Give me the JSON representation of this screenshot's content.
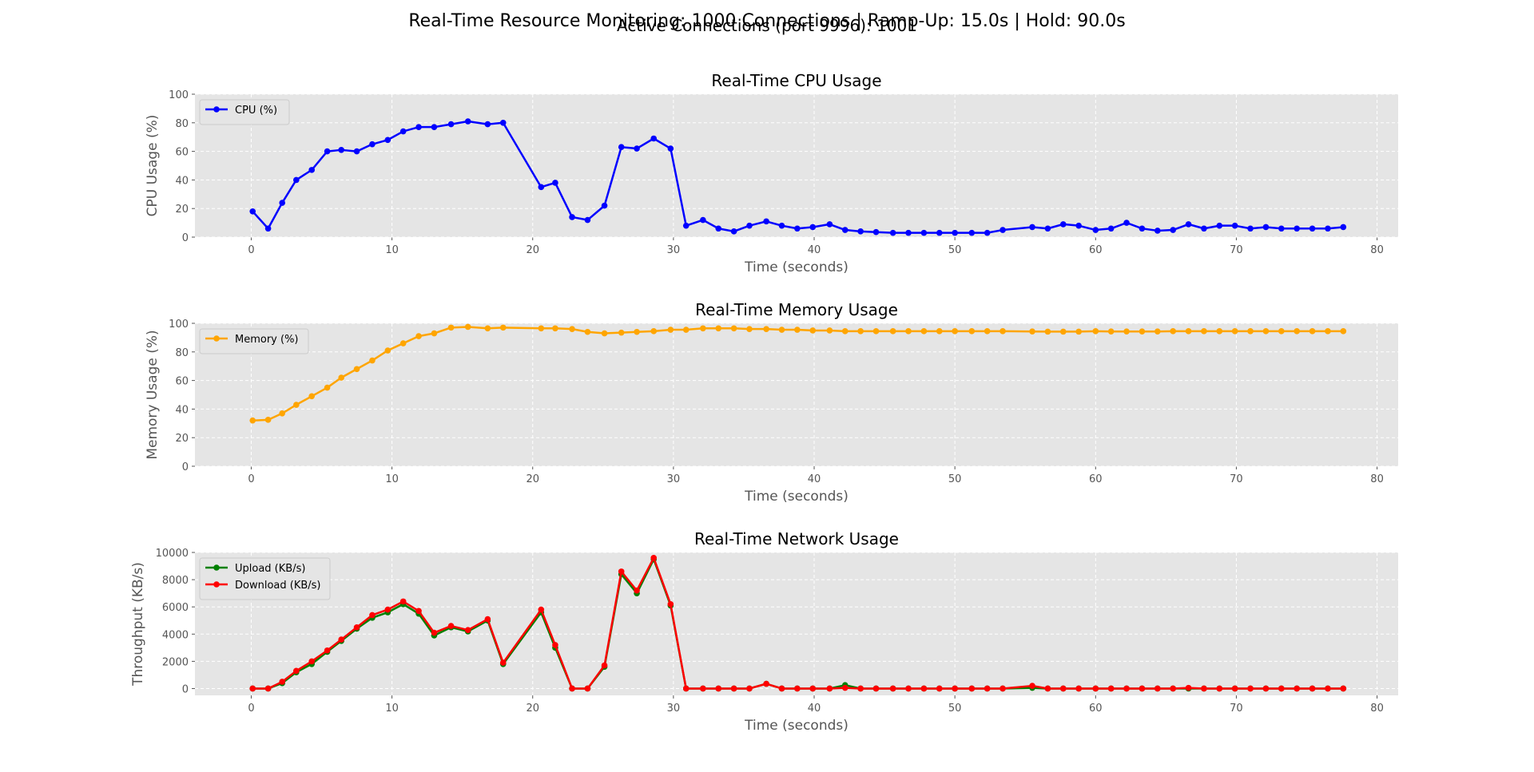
{
  "figure": {
    "title": "Real-Time Resource Monitoring: 1000 Connections | Ramp-Up: 15.0s | Hold: 90.0s",
    "subtitle": "Active Connections (port 9996): 1001"
  },
  "colors": {
    "panel_bg": "#e5e5e5",
    "grid": "#ffffff",
    "cpu": "#0000ff",
    "memory": "#ffa500",
    "upload": "#008000",
    "download": "#ff0000"
  },
  "chart_data": [
    {
      "type": "line",
      "title": "Real-Time CPU Usage",
      "xlabel": "Time (seconds)",
      "ylabel": "CPU Usage (%)",
      "xlim": [
        -4,
        81.5
      ],
      "ylim": [
        0,
        100
      ],
      "xticks": [
        0,
        10,
        20,
        30,
        40,
        50,
        60,
        70,
        80
      ],
      "yticks": [
        0,
        20,
        40,
        60,
        80,
        100
      ],
      "grid": true,
      "legend_position": "top-left",
      "series": [
        {
          "name": "CPU (%)",
          "color": "#0000ff",
          "x": [
            0.1,
            1.2,
            2.2,
            3.2,
            4.3,
            5.4,
            6.4,
            7.5,
            8.6,
            9.7,
            10.8,
            11.9,
            13.0,
            14.2,
            15.4,
            16.8,
            17.9,
            20.6,
            21.6,
            22.8,
            23.9,
            25.1,
            26.3,
            27.4,
            28.6,
            29.8,
            30.9,
            32.1,
            33.2,
            34.3,
            35.4,
            36.6,
            37.7,
            38.8,
            39.9,
            41.1,
            42.2,
            43.3,
            44.4,
            45.6,
            46.7,
            47.8,
            48.9,
            50.0,
            51.2,
            52.3,
            53.4,
            55.5,
            56.6,
            57.7,
            58.8,
            60.0,
            61.1,
            62.2,
            63.3,
            64.4,
            65.5,
            66.6,
            67.7,
            68.8,
            69.9,
            71.0,
            72.1,
            73.2,
            74.3,
            75.4,
            76.5,
            77.6
          ],
          "y": [
            18,
            6,
            24,
            40,
            47,
            60,
            61,
            60,
            65,
            68,
            74,
            77,
            77,
            79,
            81,
            79,
            80,
            35,
            38,
            14,
            12,
            22,
            63,
            62,
            69,
            62,
            8,
            12,
            6,
            4,
            8,
            11,
            8,
            6,
            7,
            9,
            5,
            4,
            3.5,
            3,
            3,
            3,
            3,
            3,
            3,
            3,
            5,
            7,
            6,
            9,
            8,
            5,
            6,
            10,
            6,
            4.5,
            5,
            9,
            6,
            8,
            8,
            6,
            7,
            6,
            6,
            6,
            6,
            7
          ]
        }
      ]
    },
    {
      "type": "line",
      "title": "Real-Time Memory Usage",
      "xlabel": "Time (seconds)",
      "ylabel": "Memory Usage (%)",
      "xlim": [
        -4,
        81.5
      ],
      "ylim": [
        0,
        100
      ],
      "xticks": [
        0,
        10,
        20,
        30,
        40,
        50,
        60,
        70,
        80
      ],
      "yticks": [
        0,
        20,
        40,
        60,
        80,
        100
      ],
      "grid": true,
      "legend_position": "top-left",
      "series": [
        {
          "name": "Memory (%)",
          "color": "#ffa500",
          "x": [
            0.1,
            1.2,
            2.2,
            3.2,
            4.3,
            5.4,
            6.4,
            7.5,
            8.6,
            9.7,
            10.8,
            11.9,
            13.0,
            14.2,
            15.4,
            16.8,
            17.9,
            20.6,
            21.6,
            22.8,
            23.9,
            25.1,
            26.3,
            27.4,
            28.6,
            29.8,
            30.9,
            32.1,
            33.2,
            34.3,
            35.4,
            36.6,
            37.7,
            38.8,
            39.9,
            41.1,
            42.2,
            43.3,
            44.4,
            45.6,
            46.7,
            47.8,
            48.9,
            50.0,
            51.2,
            52.3,
            53.4,
            55.5,
            56.6,
            57.7,
            58.8,
            60.0,
            61.1,
            62.2,
            63.3,
            64.4,
            65.5,
            66.6,
            67.7,
            68.8,
            69.9,
            71.0,
            72.1,
            73.2,
            74.3,
            75.4,
            76.5,
            77.6
          ],
          "y": [
            32,
            32.5,
            37,
            43,
            49,
            55,
            62,
            68,
            74,
            81,
            86,
            91,
            93,
            97,
            97.5,
            96.5,
            97,
            96.5,
            96.5,
            96,
            94,
            93,
            93.5,
            94,
            94.5,
            95.5,
            95.5,
            96.5,
            96.5,
            96.5,
            96,
            96,
            95.5,
            95.5,
            95,
            95,
            94.5,
            94.5,
            94.5,
            94.5,
            94.5,
            94.5,
            94.5,
            94.5,
            94.5,
            94.5,
            94.5,
            94.3,
            94.2,
            94.2,
            94.2,
            94.5,
            94.3,
            94.3,
            94.3,
            94.3,
            94.5,
            94.5,
            94.5,
            94.5,
            94.5,
            94.5,
            94.5,
            94.5,
            94.5,
            94.5,
            94.5,
            94.5
          ]
        }
      ]
    },
    {
      "type": "line",
      "title": "Real-Time Network Usage",
      "xlabel": "Time (seconds)",
      "ylabel": "Throughput (KB/s)",
      "xlim": [
        -4,
        81.5
      ],
      "ylim": [
        -500,
        10000
      ],
      "xticks": [
        0,
        10,
        20,
        30,
        40,
        50,
        60,
        70,
        80
      ],
      "yticks": [
        0,
        2000,
        4000,
        6000,
        8000,
        10000
      ],
      "grid": true,
      "legend_position": "top-left",
      "series": [
        {
          "name": "Upload (KB/s)",
          "color": "#008000",
          "x": [
            0.1,
            1.2,
            2.2,
            3.2,
            4.3,
            5.4,
            6.4,
            7.5,
            8.6,
            9.7,
            10.8,
            11.9,
            13.0,
            14.2,
            15.4,
            16.8,
            17.9,
            20.6,
            21.6,
            22.8,
            23.9,
            25.1,
            26.3,
            27.4,
            28.6,
            29.8,
            30.9,
            32.1,
            33.2,
            34.3,
            35.4,
            36.6,
            37.7,
            38.8,
            39.9,
            41.1,
            42.2,
            43.3,
            44.4,
            45.6,
            46.7,
            47.8,
            48.9,
            50.0,
            51.2,
            52.3,
            53.4,
            55.5,
            56.6,
            57.7,
            58.8,
            60.0,
            61.1,
            62.2,
            63.3,
            64.4,
            65.5,
            66.6,
            67.7,
            68.8,
            69.9,
            71.0,
            72.1,
            73.2,
            74.3,
            75.4,
            76.5,
            77.6
          ],
          "y": [
            0,
            0,
            400,
            1200,
            1800,
            2700,
            3500,
            4400,
            5200,
            5600,
            6200,
            5500,
            3900,
            4500,
            4200,
            5000,
            1800,
            5600,
            3000,
            0,
            0,
            1600,
            8400,
            7000,
            9500,
            6100,
            0,
            0,
            0,
            0,
            0,
            350,
            0,
            0,
            0,
            0,
            250,
            0,
            0,
            0,
            0,
            0,
            0,
            0,
            0,
            0,
            0,
            50,
            0,
            0,
            0,
            0,
            0,
            0,
            0,
            0,
            0,
            0,
            0,
            0,
            0,
            0,
            0,
            0,
            0,
            0,
            0,
            0
          ]
        },
        {
          "name": "Download (KB/s)",
          "color": "#ff0000",
          "x": [
            0.1,
            1.2,
            2.2,
            3.2,
            4.3,
            5.4,
            6.4,
            7.5,
            8.6,
            9.7,
            10.8,
            11.9,
            13.0,
            14.2,
            15.4,
            16.8,
            17.9,
            20.6,
            21.6,
            22.8,
            23.9,
            25.1,
            26.3,
            27.4,
            28.6,
            29.8,
            30.9,
            32.1,
            33.2,
            34.3,
            35.4,
            36.6,
            37.7,
            38.8,
            39.9,
            41.1,
            42.2,
            43.3,
            44.4,
            45.6,
            46.7,
            47.8,
            48.9,
            50.0,
            51.2,
            52.3,
            53.4,
            55.5,
            56.6,
            57.7,
            58.8,
            60.0,
            61.1,
            62.2,
            63.3,
            64.4,
            65.5,
            66.6,
            67.7,
            68.8,
            69.9,
            71.0,
            72.1,
            73.2,
            74.3,
            75.4,
            76.5,
            77.6
          ],
          "y": [
            0,
            0,
            500,
            1300,
            2000,
            2800,
            3600,
            4500,
            5400,
            5800,
            6400,
            5700,
            4100,
            4600,
            4300,
            5100,
            1900,
            5800,
            3200,
            0,
            0,
            1700,
            8600,
            7200,
            9600,
            6200,
            0,
            0,
            0,
            0,
            0,
            350,
            0,
            0,
            0,
            0,
            50,
            0,
            0,
            0,
            0,
            0,
            0,
            0,
            0,
            0,
            0,
            200,
            0,
            0,
            0,
            0,
            0,
            0,
            0,
            0,
            0,
            50,
            0,
            0,
            0,
            0,
            0,
            0,
            0,
            0,
            0,
            0
          ]
        }
      ]
    }
  ]
}
